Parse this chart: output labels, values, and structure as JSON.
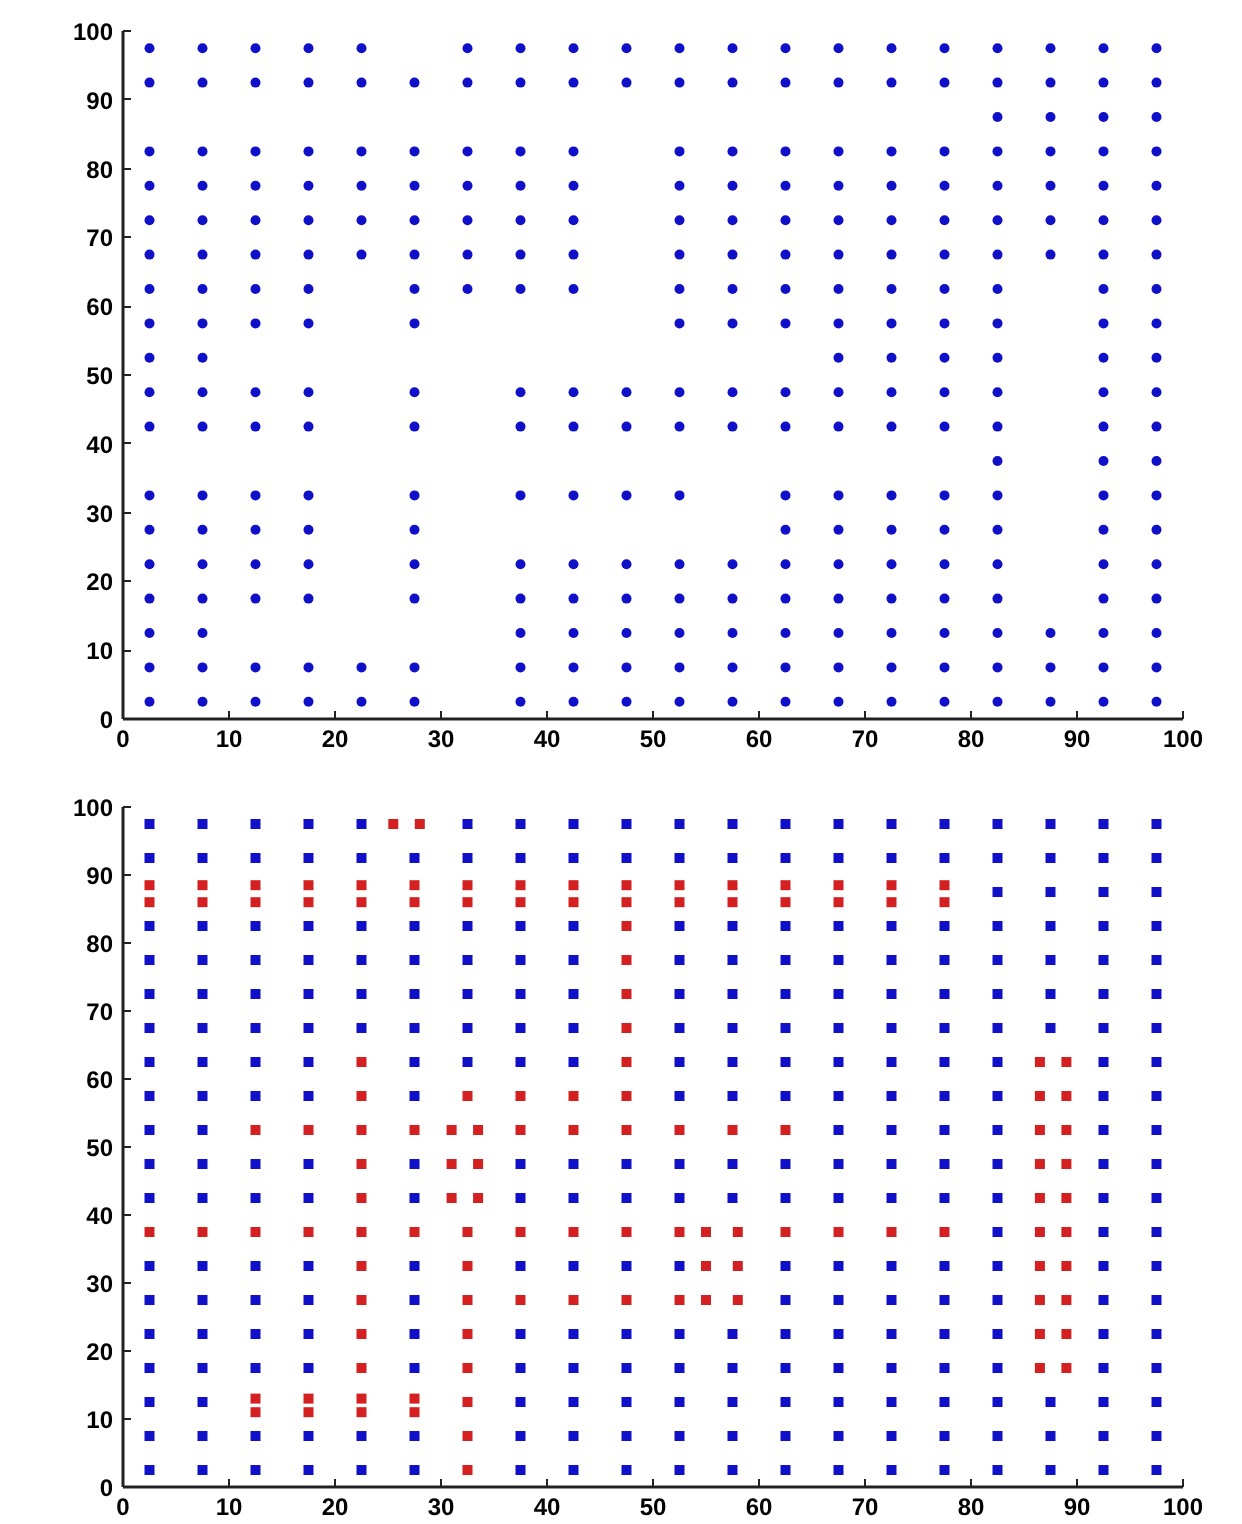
{
  "chart_data": [
    {
      "type": "scatter",
      "marker": "circle",
      "xlim": [
        0,
        100
      ],
      "ylim": [
        0,
        100
      ],
      "xticks": [
        0,
        10,
        20,
        30,
        40,
        50,
        60,
        70,
        80,
        90,
        100
      ],
      "yticks": [
        0,
        10,
        20,
        30,
        40,
        50,
        60,
        70,
        80,
        90,
        100
      ],
      "grid": false,
      "series": [
        {
          "color": "#1010c8",
          "x": [
            2.5,
            2.5,
            2.5,
            2.5,
            2.5,
            2.5,
            2.5,
            2.5,
            2.5,
            2.5,
            2.5,
            2.5,
            2.5,
            2.5,
            2.5,
            2.5,
            2.5,
            2.5
          ],
          "values": [
            97.5,
            92.5,
            82.5,
            77.5,
            72.5,
            67.5,
            62.5,
            57.5,
            52.5,
            47.5,
            42.5,
            32.5,
            27.5,
            22.5,
            17.5,
            12.5,
            7.5,
            2.5
          ]
        },
        {
          "color": "#1010c8",
          "x": [
            7.5,
            7.5,
            7.5,
            7.5,
            7.5,
            7.5,
            7.5,
            7.5,
            7.5,
            7.5,
            7.5,
            7.5,
            7.5,
            7.5,
            7.5,
            7.5,
            7.5,
            7.5
          ],
          "values": [
            97.5,
            92.5,
            82.5,
            77.5,
            72.5,
            67.5,
            62.5,
            57.5,
            52.5,
            47.5,
            42.5,
            32.5,
            27.5,
            22.5,
            17.5,
            12.5,
            7.5,
            2.5
          ]
        },
        {
          "color": "#1010c8",
          "x": [
            12.5,
            12.5,
            12.5,
            12.5,
            12.5,
            12.5,
            12.5,
            12.5,
            12.5,
            12.5,
            12.5,
            12.5,
            12.5,
            12.5,
            12.5,
            12.5
          ],
          "values": [
            97.5,
            92.5,
            82.5,
            77.5,
            72.5,
            67.5,
            62.5,
            57.5,
            47.5,
            42.5,
            32.5,
            27.5,
            22.5,
            17.5,
            7.5,
            2.5
          ]
        },
        {
          "color": "#1010c8",
          "x": [
            17.5,
            17.5,
            17.5,
            17.5,
            17.5,
            17.5,
            17.5,
            17.5,
            17.5,
            17.5,
            17.5,
            17.5,
            17.5,
            17.5,
            17.5,
            17.5
          ],
          "values": [
            97.5,
            92.5,
            82.5,
            77.5,
            72.5,
            67.5,
            62.5,
            57.5,
            47.5,
            42.5,
            32.5,
            27.5,
            22.5,
            17.5,
            7.5,
            2.5
          ]
        },
        {
          "color": "#1010c8",
          "x": [
            22.5,
            22.5,
            22.5,
            22.5,
            22.5,
            22.5,
            22.5,
            22.5
          ],
          "values": [
            97.5,
            92.5,
            82.5,
            77.5,
            72.5,
            67.5,
            7.5,
            2.5
          ]
        },
        {
          "color": "#1010c8",
          "x": [
            27.5,
            27.5,
            27.5,
            27.5,
            27.5,
            27.5,
            27.5,
            27.5,
            27.5,
            27.5,
            27.5,
            27.5,
            27.5,
            27.5,
            27.5
          ],
          "values": [
            92.5,
            82.5,
            77.5,
            72.5,
            67.5,
            62.5,
            57.5,
            47.5,
            42.5,
            32.5,
            27.5,
            22.5,
            17.5,
            7.5,
            2.5
          ]
        },
        {
          "color": "#1010c8",
          "x": [
            32.5,
            32.5,
            32.5,
            32.5,
            32.5,
            32.5,
            32.5
          ],
          "values": [
            97.5,
            92.5,
            82.5,
            77.5,
            72.5,
            67.5,
            62.5
          ]
        },
        {
          "color": "#1010c8",
          "x": [
            37.5,
            37.5,
            37.5,
            37.5,
            37.5,
            37.5,
            37.5,
            37.5,
            37.5,
            37.5,
            37.5,
            37.5,
            37.5,
            37.5,
            37.5
          ],
          "values": [
            97.5,
            92.5,
            82.5,
            77.5,
            72.5,
            67.5,
            62.5,
            47.5,
            42.5,
            32.5,
            22.5,
            17.5,
            12.5,
            7.5,
            2.5
          ]
        },
        {
          "color": "#1010c8",
          "x": [
            42.5,
            42.5,
            42.5,
            42.5,
            42.5,
            42.5,
            42.5,
            42.5,
            42.5,
            42.5,
            42.5,
            42.5,
            42.5,
            42.5,
            42.5
          ],
          "values": [
            97.5,
            92.5,
            82.5,
            77.5,
            72.5,
            67.5,
            62.5,
            47.5,
            42.5,
            32.5,
            22.5,
            17.5,
            12.5,
            7.5,
            2.5
          ]
        },
        {
          "color": "#1010c8",
          "x": [
            47.5,
            47.5,
            47.5,
            47.5,
            47.5,
            47.5,
            47.5,
            47.5,
            47.5,
            47.5
          ],
          "values": [
            97.5,
            92.5,
            47.5,
            42.5,
            32.5,
            22.5,
            17.5,
            12.5,
            7.5,
            2.5
          ]
        },
        {
          "color": "#1010c8",
          "x": [
            52.5,
            52.5,
            52.5,
            52.5,
            52.5,
            52.5,
            52.5,
            52.5,
            52.5,
            52.5,
            52.5,
            52.5,
            52.5,
            52.5,
            52.5,
            52.5
          ],
          "values": [
            97.5,
            92.5,
            82.5,
            77.5,
            72.5,
            67.5,
            62.5,
            57.5,
            47.5,
            42.5,
            32.5,
            22.5,
            17.5,
            12.5,
            7.5,
            2.5
          ]
        },
        {
          "color": "#1010c8",
          "x": [
            57.5,
            57.5,
            57.5,
            57.5,
            57.5,
            57.5,
            57.5,
            57.5,
            57.5,
            57.5,
            57.5,
            57.5,
            57.5,
            57.5,
            57.5
          ],
          "values": [
            97.5,
            92.5,
            82.5,
            77.5,
            72.5,
            67.5,
            62.5,
            57.5,
            47.5,
            42.5,
            22.5,
            17.5,
            12.5,
            7.5,
            2.5
          ]
        },
        {
          "color": "#1010c8",
          "x": [
            62.5,
            62.5,
            62.5,
            62.5,
            62.5,
            62.5,
            62.5,
            62.5,
            62.5,
            62.5,
            62.5,
            62.5,
            62.5,
            62.5,
            62.5,
            62.5,
            62.5
          ],
          "values": [
            97.5,
            92.5,
            82.5,
            77.5,
            72.5,
            67.5,
            62.5,
            57.5,
            47.5,
            42.5,
            32.5,
            27.5,
            22.5,
            17.5,
            12.5,
            7.5,
            2.5
          ]
        },
        {
          "color": "#1010c8",
          "x": [
            67.5,
            67.5,
            67.5,
            67.5,
            67.5,
            67.5,
            67.5,
            67.5,
            67.5,
            67.5,
            67.5,
            67.5,
            67.5,
            67.5,
            67.5,
            67.5,
            67.5,
            67.5
          ],
          "values": [
            97.5,
            92.5,
            82.5,
            77.5,
            72.5,
            67.5,
            62.5,
            57.5,
            52.5,
            47.5,
            42.5,
            32.5,
            27.5,
            22.5,
            17.5,
            12.5,
            7.5,
            2.5
          ]
        },
        {
          "color": "#1010c8",
          "x": [
            72.5,
            72.5,
            72.5,
            72.5,
            72.5,
            72.5,
            72.5,
            72.5,
            72.5,
            72.5,
            72.5,
            72.5,
            72.5,
            72.5,
            72.5,
            72.5,
            72.5,
            72.5
          ],
          "values": [
            97.5,
            92.5,
            82.5,
            77.5,
            72.5,
            67.5,
            62.5,
            57.5,
            52.5,
            47.5,
            42.5,
            32.5,
            27.5,
            22.5,
            17.5,
            12.5,
            7.5,
            2.5
          ]
        },
        {
          "color": "#1010c8",
          "x": [
            77.5,
            77.5,
            77.5,
            77.5,
            77.5,
            77.5,
            77.5,
            77.5,
            77.5,
            77.5,
            77.5,
            77.5,
            77.5,
            77.5,
            77.5,
            77.5,
            77.5,
            77.5
          ],
          "values": [
            97.5,
            92.5,
            82.5,
            77.5,
            72.5,
            67.5,
            62.5,
            57.5,
            52.5,
            47.5,
            42.5,
            32.5,
            27.5,
            22.5,
            17.5,
            12.5,
            7.5,
            2.5
          ]
        },
        {
          "color": "#1010c8",
          "x": [
            82.5,
            82.5,
            82.5,
            82.5,
            82.5,
            82.5,
            82.5,
            82.5,
            82.5,
            82.5,
            82.5,
            82.5,
            82.5,
            82.5,
            82.5,
            82.5,
            82.5,
            82.5,
            82.5,
            82.5
          ],
          "values": [
            97.5,
            92.5,
            87.5,
            82.5,
            77.5,
            72.5,
            67.5,
            62.5,
            57.5,
            52.5,
            47.5,
            42.5,
            37.5,
            32.5,
            27.5,
            22.5,
            17.5,
            12.5,
            7.5,
            2.5
          ]
        },
        {
          "color": "#1010c8",
          "x": [
            87.5,
            87.5,
            87.5,
            87.5,
            87.5,
            87.5,
            87.5,
            87.5,
            87.5,
            87.5
          ],
          "values": [
            97.5,
            92.5,
            87.5,
            82.5,
            77.5,
            72.5,
            67.5,
            12.5,
            7.5,
            2.5
          ]
        },
        {
          "color": "#1010c8",
          "x": [
            92.5,
            92.5,
            92.5,
            92.5,
            92.5,
            92.5,
            92.5,
            92.5,
            92.5,
            92.5,
            92.5,
            92.5,
            92.5,
            92.5,
            92.5,
            92.5,
            92.5,
            92.5,
            92.5,
            92.5
          ],
          "values": [
            97.5,
            92.5,
            87.5,
            82.5,
            77.5,
            72.5,
            67.5,
            62.5,
            57.5,
            52.5,
            47.5,
            42.5,
            37.5,
            32.5,
            27.5,
            22.5,
            17.5,
            12.5,
            7.5,
            2.5
          ]
        },
        {
          "color": "#1010c8",
          "x": [
            97.5,
            97.5,
            97.5,
            97.5,
            97.5,
            97.5,
            97.5,
            97.5,
            97.5,
            97.5,
            97.5,
            97.5,
            97.5,
            97.5,
            97.5,
            97.5,
            97.5,
            97.5,
            97.5,
            97.5
          ],
          "values": [
            97.5,
            92.5,
            87.5,
            82.5,
            77.5,
            72.5,
            67.5,
            62.5,
            57.5,
            52.5,
            47.5,
            42.5,
            37.5,
            32.5,
            27.5,
            22.5,
            17.5,
            12.5,
            7.5,
            2.5
          ]
        }
      ]
    },
    {
      "type": "scatter",
      "marker": "square",
      "xlim": [
        0,
        100
      ],
      "ylim": [
        0,
        100
      ],
      "xticks": [
        0,
        10,
        20,
        30,
        40,
        50,
        60,
        70,
        80,
        90,
        100
      ],
      "yticks": [
        0,
        10,
        20,
        30,
        40,
        50,
        60,
        70,
        80,
        90,
        100
      ],
      "grid": false,
      "series": [
        {
          "color": "#1010c8",
          "x": [
            2.5,
            2.5,
            2.5,
            2.5,
            2.5,
            2.5,
            2.5,
            2.5,
            2.5,
            2.5,
            2.5,
            2.5,
            2.5,
            2.5,
            2.5,
            2.5,
            2.5,
            2.5
          ],
          "values": [
            97.5,
            92.5,
            82.5,
            77.5,
            72.5,
            67.5,
            62.5,
            57.5,
            52.5,
            47.5,
            42.5,
            32.5,
            27.5,
            22.5,
            17.5,
            12.5,
            7.5,
            2.5
          ]
        },
        {
          "color": "#1010c8",
          "x": [
            7.5,
            7.5,
            7.5,
            7.5,
            7.5,
            7.5,
            7.5,
            7.5,
            7.5,
            7.5,
            7.5,
            7.5,
            7.5,
            7.5,
            7.5,
            7.5,
            7.5,
            7.5
          ],
          "values": [
            97.5,
            92.5,
            82.5,
            77.5,
            72.5,
            67.5,
            62.5,
            57.5,
            52.5,
            47.5,
            42.5,
            32.5,
            27.5,
            22.5,
            17.5,
            12.5,
            7.5,
            2.5
          ]
        },
        {
          "color": "#1010c8",
          "x": [
            12.5,
            12.5,
            12.5,
            12.5,
            12.5,
            12.5,
            12.5,
            12.5,
            12.5,
            12.5,
            12.5,
            12.5,
            12.5,
            12.5,
            12.5,
            12.5
          ],
          "values": [
            97.5,
            92.5,
            82.5,
            77.5,
            72.5,
            67.5,
            62.5,
            57.5,
            47.5,
            42.5,
            32.5,
            27.5,
            22.5,
            17.5,
            7.5,
            2.5
          ]
        },
        {
          "color": "#1010c8",
          "x": [
            17.5,
            17.5,
            17.5,
            17.5,
            17.5,
            17.5,
            17.5,
            17.5,
            17.5,
            17.5,
            17.5,
            17.5,
            17.5,
            17.5,
            17.5,
            17.5
          ],
          "values": [
            97.5,
            92.5,
            82.5,
            77.5,
            72.5,
            67.5,
            62.5,
            57.5,
            47.5,
            42.5,
            32.5,
            27.5,
            22.5,
            17.5,
            7.5,
            2.5
          ]
        },
        {
          "color": "#1010c8",
          "x": [
            22.5,
            22.5,
            22.5,
            22.5,
            22.5,
            22.5,
            22.5,
            22.5
          ],
          "values": [
            97.5,
            92.5,
            82.5,
            77.5,
            72.5,
            67.5,
            7.5,
            2.5
          ]
        },
        {
          "color": "#1010c8",
          "x": [
            27.5,
            27.5,
            27.5,
            27.5,
            27.5,
            27.5,
            27.5,
            27.5,
            27.5,
            27.5,
            27.5,
            27.5,
            27.5,
            27.5,
            27.5
          ],
          "values": [
            92.5,
            82.5,
            77.5,
            72.5,
            67.5,
            62.5,
            57.5,
            47.5,
            42.5,
            32.5,
            27.5,
            22.5,
            17.5,
            7.5,
            2.5
          ]
        },
        {
          "color": "#1010c8",
          "x": [
            32.5,
            32.5,
            32.5,
            32.5,
            32.5,
            32.5,
            32.5
          ],
          "values": [
            97.5,
            92.5,
            82.5,
            77.5,
            72.5,
            67.5,
            62.5
          ]
        },
        {
          "color": "#1010c8",
          "x": [
            37.5,
            37.5,
            37.5,
            37.5,
            37.5,
            37.5,
            37.5,
            37.5,
            37.5,
            37.5,
            37.5,
            37.5,
            37.5,
            37.5,
            37.5
          ],
          "values": [
            97.5,
            92.5,
            82.5,
            77.5,
            72.5,
            67.5,
            62.5,
            47.5,
            42.5,
            32.5,
            22.5,
            17.5,
            12.5,
            7.5,
            2.5
          ]
        },
        {
          "color": "#1010c8",
          "x": [
            42.5,
            42.5,
            42.5,
            42.5,
            42.5,
            42.5,
            42.5,
            42.5,
            42.5,
            42.5,
            42.5,
            42.5,
            42.5,
            42.5,
            42.5
          ],
          "values": [
            97.5,
            92.5,
            82.5,
            77.5,
            72.5,
            67.5,
            62.5,
            47.5,
            42.5,
            32.5,
            22.5,
            17.5,
            12.5,
            7.5,
            2.5
          ]
        },
        {
          "color": "#1010c8",
          "x": [
            47.5,
            47.5,
            47.5,
            47.5,
            47.5,
            47.5,
            47.5,
            47.5,
            47.5,
            47.5
          ],
          "values": [
            97.5,
            92.5,
            47.5,
            42.5,
            32.5,
            22.5,
            17.5,
            12.5,
            7.5,
            2.5
          ]
        },
        {
          "color": "#1010c8",
          "x": [
            52.5,
            52.5,
            52.5,
            52.5,
            52.5,
            52.5,
            52.5,
            52.5,
            52.5,
            52.5,
            52.5,
            52.5,
            52.5,
            52.5,
            52.5,
            52.5
          ],
          "values": [
            97.5,
            92.5,
            82.5,
            77.5,
            72.5,
            67.5,
            62.5,
            57.5,
            47.5,
            42.5,
            32.5,
            22.5,
            17.5,
            12.5,
            7.5,
            2.5
          ]
        },
        {
          "color": "#1010c8",
          "x": [
            57.5,
            57.5,
            57.5,
            57.5,
            57.5,
            57.5,
            57.5,
            57.5,
            57.5,
            57.5,
            57.5,
            57.5,
            57.5,
            57.5,
            57.5
          ],
          "values": [
            97.5,
            92.5,
            82.5,
            77.5,
            72.5,
            67.5,
            62.5,
            57.5,
            47.5,
            42.5,
            22.5,
            17.5,
            12.5,
            7.5,
            2.5
          ]
        },
        {
          "color": "#1010c8",
          "x": [
            62.5,
            62.5,
            62.5,
            62.5,
            62.5,
            62.5,
            62.5,
            62.5,
            62.5,
            62.5,
            62.5,
            62.5,
            62.5,
            62.5,
            62.5,
            62.5,
            62.5
          ],
          "values": [
            97.5,
            92.5,
            82.5,
            77.5,
            72.5,
            67.5,
            62.5,
            57.5,
            47.5,
            42.5,
            32.5,
            27.5,
            22.5,
            17.5,
            12.5,
            7.5,
            2.5
          ]
        },
        {
          "color": "#1010c8",
          "x": [
            67.5,
            67.5,
            67.5,
            67.5,
            67.5,
            67.5,
            67.5,
            67.5,
            67.5,
            67.5,
            67.5,
            67.5,
            67.5,
            67.5,
            67.5,
            67.5,
            67.5,
            67.5
          ],
          "values": [
            97.5,
            92.5,
            82.5,
            77.5,
            72.5,
            67.5,
            62.5,
            57.5,
            52.5,
            47.5,
            42.5,
            32.5,
            27.5,
            22.5,
            17.5,
            12.5,
            7.5,
            2.5
          ]
        },
        {
          "color": "#1010c8",
          "x": [
            72.5,
            72.5,
            72.5,
            72.5,
            72.5,
            72.5,
            72.5,
            72.5,
            72.5,
            72.5,
            72.5,
            72.5,
            72.5,
            72.5,
            72.5,
            72.5,
            72.5,
            72.5
          ],
          "values": [
            97.5,
            92.5,
            82.5,
            77.5,
            72.5,
            67.5,
            62.5,
            57.5,
            52.5,
            47.5,
            42.5,
            32.5,
            27.5,
            22.5,
            17.5,
            12.5,
            7.5,
            2.5
          ]
        },
        {
          "color": "#1010c8",
          "x": [
            77.5,
            77.5,
            77.5,
            77.5,
            77.5,
            77.5,
            77.5,
            77.5,
            77.5,
            77.5,
            77.5,
            77.5,
            77.5,
            77.5,
            77.5,
            77.5,
            77.5,
            77.5
          ],
          "values": [
            97.5,
            92.5,
            82.5,
            77.5,
            72.5,
            67.5,
            62.5,
            57.5,
            52.5,
            47.5,
            42.5,
            32.5,
            27.5,
            22.5,
            17.5,
            12.5,
            7.5,
            2.5
          ]
        },
        {
          "color": "#1010c8",
          "x": [
            82.5,
            82.5,
            82.5,
            82.5,
            82.5,
            82.5,
            82.5,
            82.5,
            82.5,
            82.5,
            82.5,
            82.5,
            82.5,
            82.5,
            82.5,
            82.5,
            82.5,
            82.5,
            82.5,
            82.5
          ],
          "values": [
            97.5,
            92.5,
            87.5,
            82.5,
            77.5,
            72.5,
            67.5,
            62.5,
            57.5,
            52.5,
            47.5,
            42.5,
            37.5,
            32.5,
            27.5,
            22.5,
            17.5,
            12.5,
            7.5,
            2.5
          ]
        },
        {
          "color": "#1010c8",
          "x": [
            87.5,
            87.5,
            87.5,
            87.5,
            87.5,
            87.5,
            87.5,
            87.5,
            87.5,
            87.5
          ],
          "values": [
            97.5,
            92.5,
            87.5,
            82.5,
            77.5,
            72.5,
            67.5,
            12.5,
            7.5,
            2.5
          ]
        },
        {
          "color": "#1010c8",
          "x": [
            92.5,
            92.5,
            92.5,
            92.5,
            92.5,
            92.5,
            92.5,
            92.5,
            92.5,
            92.5,
            92.5,
            92.5,
            92.5,
            92.5,
            92.5,
            92.5,
            92.5,
            92.5,
            92.5,
            92.5
          ],
          "values": [
            97.5,
            92.5,
            87.5,
            82.5,
            77.5,
            72.5,
            67.5,
            62.5,
            57.5,
            52.5,
            47.5,
            42.5,
            37.5,
            32.5,
            27.5,
            22.5,
            17.5,
            12.5,
            7.5,
            2.5
          ]
        },
        {
          "color": "#1010c8",
          "x": [
            97.5,
            97.5,
            97.5,
            97.5,
            97.5,
            97.5,
            97.5,
            97.5,
            97.5,
            97.5,
            97.5,
            97.5,
            97.5,
            97.5,
            97.5,
            97.5,
            97.5,
            97.5,
            97.5,
            97.5
          ],
          "values": [
            97.5,
            92.5,
            87.5,
            82.5,
            77.5,
            72.5,
            67.5,
            62.5,
            57.5,
            52.5,
            47.5,
            42.5,
            37.5,
            32.5,
            27.5,
            22.5,
            17.5,
            12.5,
            7.5,
            2.5
          ]
        },
        {
          "color": "#d42020",
          "x": [
            25.5,
            28
          ],
          "values": [
            97.5,
            97.5
          ]
        },
        {
          "color": "#d42020",
          "x": [
            2.5,
            7.5,
            12.5,
            17.5,
            22.5,
            27.5,
            32.5,
            37.5,
            42.5,
            47.5,
            52.5,
            57.5,
            62.5,
            67.5,
            72.5,
            77.5
          ],
          "values": [
            88.5,
            88.5,
            88.5,
            88.5,
            88.5,
            88.5,
            88.5,
            88.5,
            88.5,
            88.5,
            88.5,
            88.5,
            88.5,
            88.5,
            88.5,
            88.5
          ]
        },
        {
          "color": "#d42020",
          "x": [
            2.5,
            7.5,
            12.5,
            17.5,
            22.5,
            27.5,
            32.5,
            37.5,
            42.5,
            47.5,
            52.5,
            57.5,
            62.5,
            67.5,
            72.5,
            77.5
          ],
          "values": [
            86,
            86,
            86,
            86,
            86,
            86,
            86,
            86,
            86,
            86,
            86,
            86,
            86,
            86,
            86,
            86
          ]
        },
        {
          "color": "#d42020",
          "x": [
            47.5,
            47.5,
            47.5,
            47.5
          ],
          "values": [
            82.5,
            77.5,
            72.5,
            67.5
          ]
        },
        {
          "color": "#d42020",
          "x": [
            22.5,
            47.5,
            86.5,
            89
          ],
          "values": [
            62.5,
            62.5,
            62.5,
            62.5
          ]
        },
        {
          "color": "#d42020",
          "x": [
            22.5,
            32.5,
            37.5,
            42.5,
            47.5,
            86.5,
            89
          ],
          "values": [
            57.5,
            57.5,
            57.5,
            57.5,
            57.5,
            57.5,
            57.5
          ]
        },
        {
          "color": "#d42020",
          "x": [
            12.5,
            17.5,
            22.5,
            27.5,
            31,
            33.5,
            37.5,
            42.5,
            47.5,
            52.5,
            57.5,
            62.5,
            86.5,
            89
          ],
          "values": [
            52.5,
            52.5,
            52.5,
            52.5,
            52.5,
            52.5,
            52.5,
            52.5,
            52.5,
            52.5,
            52.5,
            52.5,
            52.5,
            52.5
          ]
        },
        {
          "color": "#d42020",
          "x": [
            22.5,
            31,
            33.5,
            86.5,
            89
          ],
          "values": [
            47.5,
            47.5,
            47.5,
            47.5,
            47.5
          ]
        },
        {
          "color": "#d42020",
          "x": [
            22.5,
            31,
            33.5,
            86.5,
            89
          ],
          "values": [
            42.5,
            42.5,
            42.5,
            42.5,
            42.5
          ]
        },
        {
          "color": "#d42020",
          "x": [
            2.5,
            7.5,
            12.5,
            17.5,
            22.5,
            27.5,
            32.5,
            37.5,
            42.5,
            47.5,
            52.5,
            55,
            58,
            62.5,
            67.5,
            72.5,
            77.5,
            86.5,
            89
          ],
          "values": [
            37.5,
            37.5,
            37.5,
            37.5,
            37.5,
            37.5,
            37.5,
            37.5,
            37.5,
            37.5,
            37.5,
            37.5,
            37.5,
            37.5,
            37.5,
            37.5,
            37.5,
            37.5,
            37.5
          ]
        },
        {
          "color": "#d42020",
          "x": [
            22.5,
            32.5,
            55,
            58,
            86.5,
            89
          ],
          "values": [
            32.5,
            32.5,
            32.5,
            32.5,
            32.5,
            32.5
          ]
        },
        {
          "color": "#d42020",
          "x": [
            22.5,
            32.5,
            37.5,
            42.5,
            47.5,
            52.5,
            55,
            58,
            86.5,
            89
          ],
          "values": [
            27.5,
            27.5,
            27.5,
            27.5,
            27.5,
            27.5,
            27.5,
            27.5,
            27.5,
            27.5
          ]
        },
        {
          "color": "#d42020",
          "x": [
            22.5,
            32.5,
            86.5,
            89
          ],
          "values": [
            22.5,
            22.5,
            22.5,
            22.5
          ]
        },
        {
          "color": "#d42020",
          "x": [
            22.5,
            32.5,
            86.5,
            89
          ],
          "values": [
            17.5,
            17.5,
            17.5,
            17.5
          ]
        },
        {
          "color": "#d42020",
          "x": [
            12.5,
            17.5,
            22.5,
            27.5
          ],
          "values": [
            13,
            13,
            13,
            13
          ]
        },
        {
          "color": "#d42020",
          "x": [
            12.5,
            17.5,
            22.5,
            27.5
          ],
          "values": [
            11,
            11,
            11,
            11
          ]
        },
        {
          "color": "#d42020",
          "x": [
            32.5,
            32.5,
            32.5
          ],
          "values": [
            12.5,
            7.5,
            2.5
          ]
        }
      ]
    }
  ]
}
